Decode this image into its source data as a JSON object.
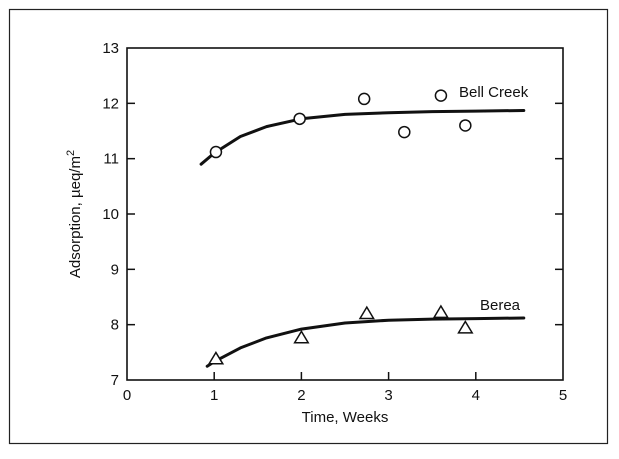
{
  "chart_data": {
    "type": "scatter",
    "title": "",
    "xlabel": "Time, Weeks",
    "ylabel": "Adsorption, µeq/m",
    "ylabel_sup": "2",
    "xlim": [
      0,
      5
    ],
    "ylim": [
      7,
      13
    ],
    "x_ticks": [
      "0",
      "1",
      "2",
      "3",
      "4",
      "5"
    ],
    "y_ticks": [
      "7",
      "8",
      "9",
      "10",
      "11",
      "12",
      "13"
    ],
    "grid": false,
    "series": [
      {
        "name": "Bell Creek",
        "marker": "circle",
        "points": [
          {
            "x": 1.02,
            "y": 11.12
          },
          {
            "x": 1.98,
            "y": 11.72
          },
          {
            "x": 2.72,
            "y": 12.08
          },
          {
            "x": 3.18,
            "y": 11.48
          },
          {
            "x": 3.6,
            "y": 12.14
          },
          {
            "x": 3.88,
            "y": 11.6
          }
        ],
        "fit": [
          {
            "x": 0.85,
            "y": 10.9
          },
          {
            "x": 1.0,
            "y": 11.1
          },
          {
            "x": 1.3,
            "y": 11.4
          },
          {
            "x": 1.6,
            "y": 11.58
          },
          {
            "x": 2.0,
            "y": 11.72
          },
          {
            "x": 2.5,
            "y": 11.8
          },
          {
            "x": 3.0,
            "y": 11.83
          },
          {
            "x": 3.5,
            "y": 11.85
          },
          {
            "x": 4.0,
            "y": 11.86
          },
          {
            "x": 4.55,
            "y": 11.87
          }
        ]
      },
      {
        "name": "Berea",
        "marker": "triangle",
        "points": [
          {
            "x": 1.02,
            "y": 7.38
          },
          {
            "x": 2.0,
            "y": 7.76
          },
          {
            "x": 2.75,
            "y": 8.2
          },
          {
            "x": 3.6,
            "y": 8.22
          },
          {
            "x": 3.88,
            "y": 7.94
          }
        ],
        "fit": [
          {
            "x": 0.92,
            "y": 7.25
          },
          {
            "x": 1.0,
            "y": 7.33
          },
          {
            "x": 1.3,
            "y": 7.58
          },
          {
            "x": 1.6,
            "y": 7.76
          },
          {
            "x": 2.0,
            "y": 7.92
          },
          {
            "x": 2.5,
            "y": 8.03
          },
          {
            "x": 3.0,
            "y": 8.08
          },
          {
            "x": 3.5,
            "y": 8.1
          },
          {
            "x": 4.0,
            "y": 8.11
          },
          {
            "x": 4.55,
            "y": 8.12
          }
        ]
      }
    ]
  }
}
